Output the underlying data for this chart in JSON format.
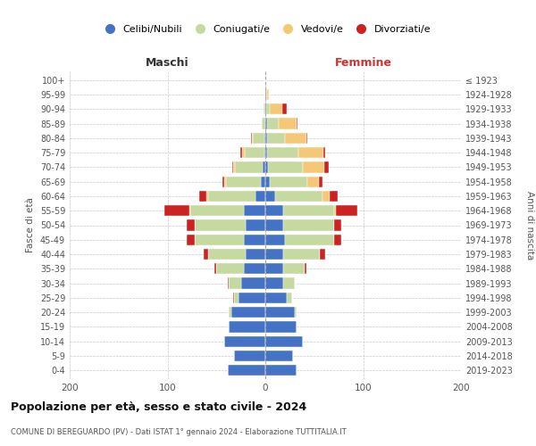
{
  "age_groups": [
    "0-4",
    "5-9",
    "10-14",
    "15-19",
    "20-24",
    "25-29",
    "30-34",
    "35-39",
    "40-44",
    "45-49",
    "50-54",
    "55-59",
    "60-64",
    "65-69",
    "70-74",
    "75-79",
    "80-84",
    "85-89",
    "90-94",
    "95-99",
    "100+"
  ],
  "birth_years": [
    "2019-2023",
    "2014-2018",
    "2009-2013",
    "2004-2008",
    "1999-2003",
    "1994-1998",
    "1989-1993",
    "1984-1988",
    "1979-1983",
    "1974-1978",
    "1969-1973",
    "1964-1968",
    "1959-1963",
    "1954-1958",
    "1949-1953",
    "1944-1948",
    "1939-1943",
    "1934-1938",
    "1929-1933",
    "1924-1928",
    "≤ 1923"
  ],
  "maschi": {
    "celibi": [
      38,
      32,
      42,
      37,
      35,
      27,
      25,
      22,
      20,
      22,
      20,
      22,
      10,
      5,
      3,
      1,
      1,
      0,
      0,
      0,
      0
    ],
    "coniugati": [
      0,
      0,
      0,
      0,
      2,
      5,
      12,
      28,
      38,
      50,
      52,
      55,
      48,
      35,
      28,
      20,
      12,
      4,
      2,
      0,
      0
    ],
    "vedovi": [
      0,
      0,
      0,
      0,
      0,
      0,
      0,
      0,
      0,
      0,
      0,
      1,
      2,
      2,
      2,
      3,
      1,
      0,
      0,
      0,
      0
    ],
    "divorziati": [
      0,
      0,
      0,
      0,
      0,
      1,
      1,
      2,
      5,
      8,
      8,
      25,
      8,
      2,
      1,
      2,
      1,
      0,
      0,
      0,
      0
    ]
  },
  "femmine": {
    "nubili": [
      32,
      28,
      38,
      32,
      30,
      22,
      18,
      18,
      18,
      20,
      18,
      18,
      10,
      5,
      3,
      2,
      2,
      2,
      1,
      1,
      0
    ],
    "coniugate": [
      0,
      0,
      0,
      0,
      2,
      5,
      12,
      22,
      38,
      50,
      52,
      52,
      48,
      38,
      35,
      32,
      18,
      12,
      4,
      1,
      0
    ],
    "vedove": [
      0,
      0,
      0,
      0,
      0,
      0,
      0,
      0,
      0,
      0,
      0,
      2,
      8,
      12,
      22,
      25,
      22,
      18,
      12,
      2,
      0
    ],
    "divorziate": [
      0,
      0,
      0,
      0,
      0,
      0,
      0,
      2,
      5,
      8,
      8,
      22,
      8,
      3,
      5,
      2,
      1,
      1,
      5,
      0,
      0
    ]
  },
  "colors": {
    "celibi_nubili": "#4472c4",
    "coniugati": "#c5d9a0",
    "vedovi": "#f5c878",
    "divorziati": "#cc2222"
  },
  "title": "Popolazione per età, sesso e stato civile - 2024",
  "subtitle": "COMUNE DI BEREGUARDO (PV) - Dati ISTAT 1° gennaio 2024 - Elaborazione TUTTITALIA.IT",
  "xlabel_left": "Maschi",
  "xlabel_right": "Femmine",
  "ylabel_left": "Fasce di età",
  "ylabel_right": "Anni di nascita",
  "xlim": 200,
  "legend_labels": [
    "Celibi/Nubili",
    "Coniugati/e",
    "Vedovi/e",
    "Divorziati/e"
  ],
  "background_color": "#ffffff",
  "bar_height": 0.75
}
